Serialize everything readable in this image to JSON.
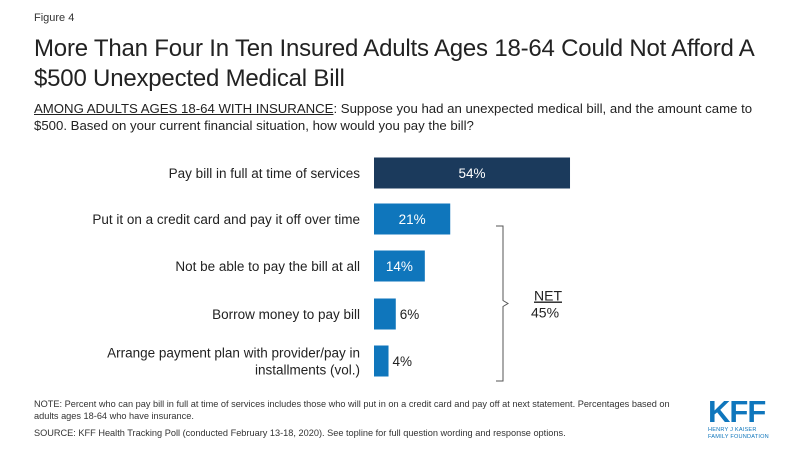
{
  "figure_label": "Figure 4",
  "title": "More Than Four In Ten Insured Adults Ages 18-64 Could Not Afford A $500 Unexpected Medical Bill",
  "subtitle": {
    "lead": "AMONG ADULTS AGES 18-64 WITH INSURANCE",
    "text": ": Suppose you had an unexpected medical bill, and the amount came to $500. Based on your current financial situation, how would you pay the bill?"
  },
  "chart_data": {
    "type": "bar",
    "orientation": "horizontal",
    "categories": [
      [
        "Pay bill in full at time of services"
      ],
      [
        "Put it on a credit card and pay it off over time"
      ],
      [
        "Not be able to pay the bill at all"
      ],
      [
        "Borrow money to pay bill"
      ],
      [
        "Arrange payment plan with provider/pay in",
        "installments (vol.)"
      ]
    ],
    "values": [
      54,
      21,
      14,
      6,
      4
    ],
    "value_labels": [
      "54%",
      "21%",
      "14%",
      "6%",
      "4%"
    ],
    "colors": [
      "#1b3a5c",
      "#0f76bc",
      "#0f76bc",
      "#0f76bc",
      "#0f76bc"
    ],
    "xlim": [
      0,
      100
    ],
    "net": {
      "label": "NET",
      "value": "45%",
      "spans_categories": [
        1,
        4
      ]
    }
  },
  "note": "NOTE: Percent who can pay bill in full at time of services includes those who will put in on a credit card and pay off at next statement. Percentages based on adults ages 18-64 who have insurance.",
  "source": "SOURCE: KFF Health Tracking Poll (conducted February 13-18, 2020). See topline for full question wording and response options.",
  "logo": {
    "mark": "KFF",
    "line1": "HENRY J KAISER",
    "line2": "FAMILY FOUNDATION",
    "color": "#0f76bc"
  }
}
